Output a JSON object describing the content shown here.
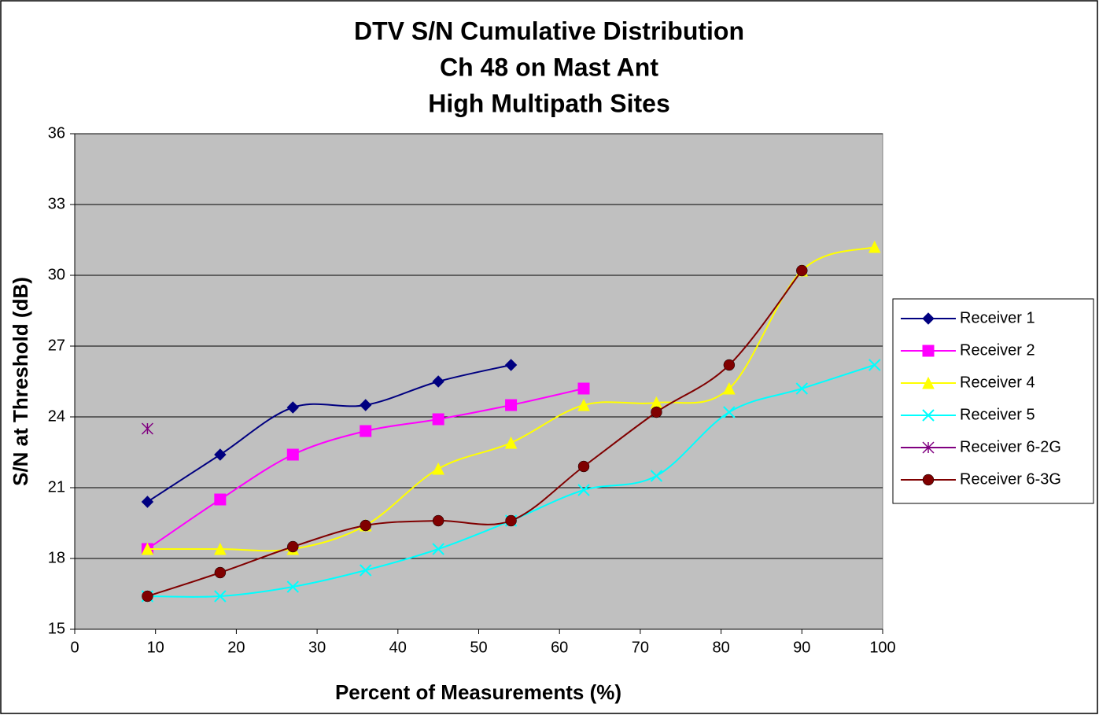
{
  "chart_data": {
    "type": "line",
    "title": [
      "DTV S/N Cumulative Distribution",
      "Ch 48 on Mast Ant",
      "High Multipath Sites"
    ],
    "x_label": "Percent of Measurements (%)",
    "y_label": "S/N at Threshold (dB)",
    "xlim": [
      0,
      100
    ],
    "xticks": [
      0,
      10,
      20,
      30,
      40,
      50,
      60,
      70,
      80,
      90,
      100
    ],
    "ylim": [
      15,
      36
    ],
    "yticks": [
      15,
      18,
      21,
      24,
      27,
      30,
      33,
      36
    ],
    "grid": true,
    "legend": "right",
    "smooth": true,
    "series": [
      {
        "name": "Receiver 1",
        "color": "#000080",
        "marker": "diamond",
        "x": [
          9,
          18,
          27,
          36,
          45,
          54
        ],
        "values": [
          20.4,
          22.4,
          24.4,
          24.5,
          25.5,
          26.2
        ]
      },
      {
        "name": "Receiver 2",
        "color": "#ff00ff",
        "marker": "square",
        "x": [
          9,
          18,
          27,
          36,
          45,
          54,
          63
        ],
        "values": [
          18.4,
          20.5,
          22.4,
          23.4,
          23.9,
          24.5,
          25.2
        ]
      },
      {
        "name": "Receiver 4",
        "color": "#ffff00",
        "marker": "triangle",
        "x": [
          9,
          18,
          27,
          36,
          45,
          54,
          63,
          72,
          81,
          90,
          99
        ],
        "values": [
          18.4,
          18.4,
          18.4,
          19.4,
          21.8,
          22.9,
          24.5,
          24.6,
          25.2,
          30.2,
          31.2
        ]
      },
      {
        "name": "Receiver 5",
        "color": "#00ffff",
        "marker": "x",
        "x": [
          9,
          18,
          27,
          36,
          45,
          54,
          63,
          72,
          81,
          90,
          99
        ],
        "values": [
          16.4,
          16.4,
          16.8,
          17.5,
          18.4,
          19.6,
          20.9,
          21.5,
          24.2,
          25.2,
          26.2
        ]
      },
      {
        "name": "Receiver 6-2G",
        "color": "#800080",
        "marker": "star",
        "x": [
          9
        ],
        "values": [
          23.5
        ]
      },
      {
        "name": "Receiver 6-3G",
        "color": "#800000",
        "marker": "circle",
        "x": [
          9,
          18,
          27,
          36,
          45,
          54,
          63,
          72,
          81,
          90
        ],
        "values": [
          16.4,
          17.4,
          18.5,
          19.4,
          19.6,
          19.6,
          21.9,
          24.2,
          26.2,
          30.2
        ]
      }
    ]
  }
}
